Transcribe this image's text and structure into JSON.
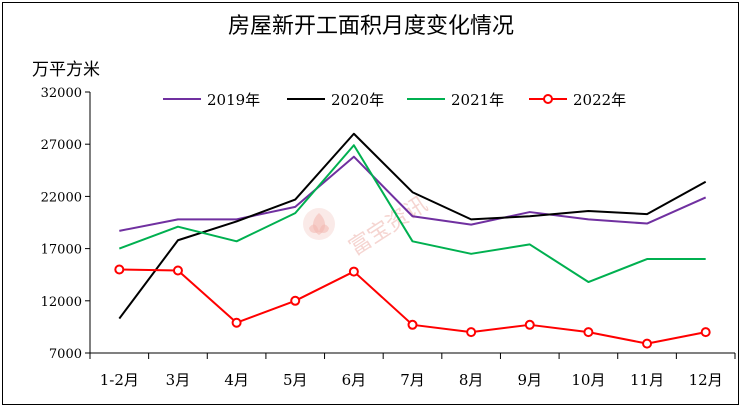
{
  "chart_data": {
    "type": "line",
    "title": "房屋新开工面积月度变化情况",
    "ylabel": "万平方米",
    "xlabel": "",
    "categories": [
      "1-2月",
      "3月",
      "4月",
      "5月",
      "6月",
      "7月",
      "8月",
      "9月",
      "10月",
      "11月",
      "12月"
    ],
    "yticks": [
      7000,
      12000,
      17000,
      22000,
      27000,
      32000
    ],
    "ylim": [
      7000,
      32000
    ],
    "grid": false,
    "legend_position": "top",
    "series": [
      {
        "name": "2019年",
        "color": "#7030a0",
        "marker": "none",
        "values": [
          18700,
          19800,
          19800,
          21000,
          25800,
          20100,
          19300,
          20500,
          19800,
          19400,
          21900
        ]
      },
      {
        "name": "2020年",
        "color": "#000000",
        "marker": "none",
        "values": [
          10300,
          17800,
          19600,
          21700,
          28000,
          22400,
          19800,
          20100,
          20600,
          20300,
          23400
        ]
      },
      {
        "name": "2021年",
        "color": "#00b050",
        "marker": "none",
        "values": [
          17000,
          19100,
          17700,
          20400,
          26900,
          17700,
          16500,
          17400,
          13800,
          16000,
          16000
        ]
      },
      {
        "name": "2022年",
        "color": "#ff0000",
        "marker": "circle",
        "values": [
          15000,
          14900,
          9900,
          12000,
          14800,
          9700,
          9000,
          9700,
          9000,
          7900,
          9000
        ]
      }
    ]
  },
  "watermark": {
    "text": "富宝资讯",
    "color": "#f2c7c2",
    "icon": "lotus-logo-icon"
  }
}
